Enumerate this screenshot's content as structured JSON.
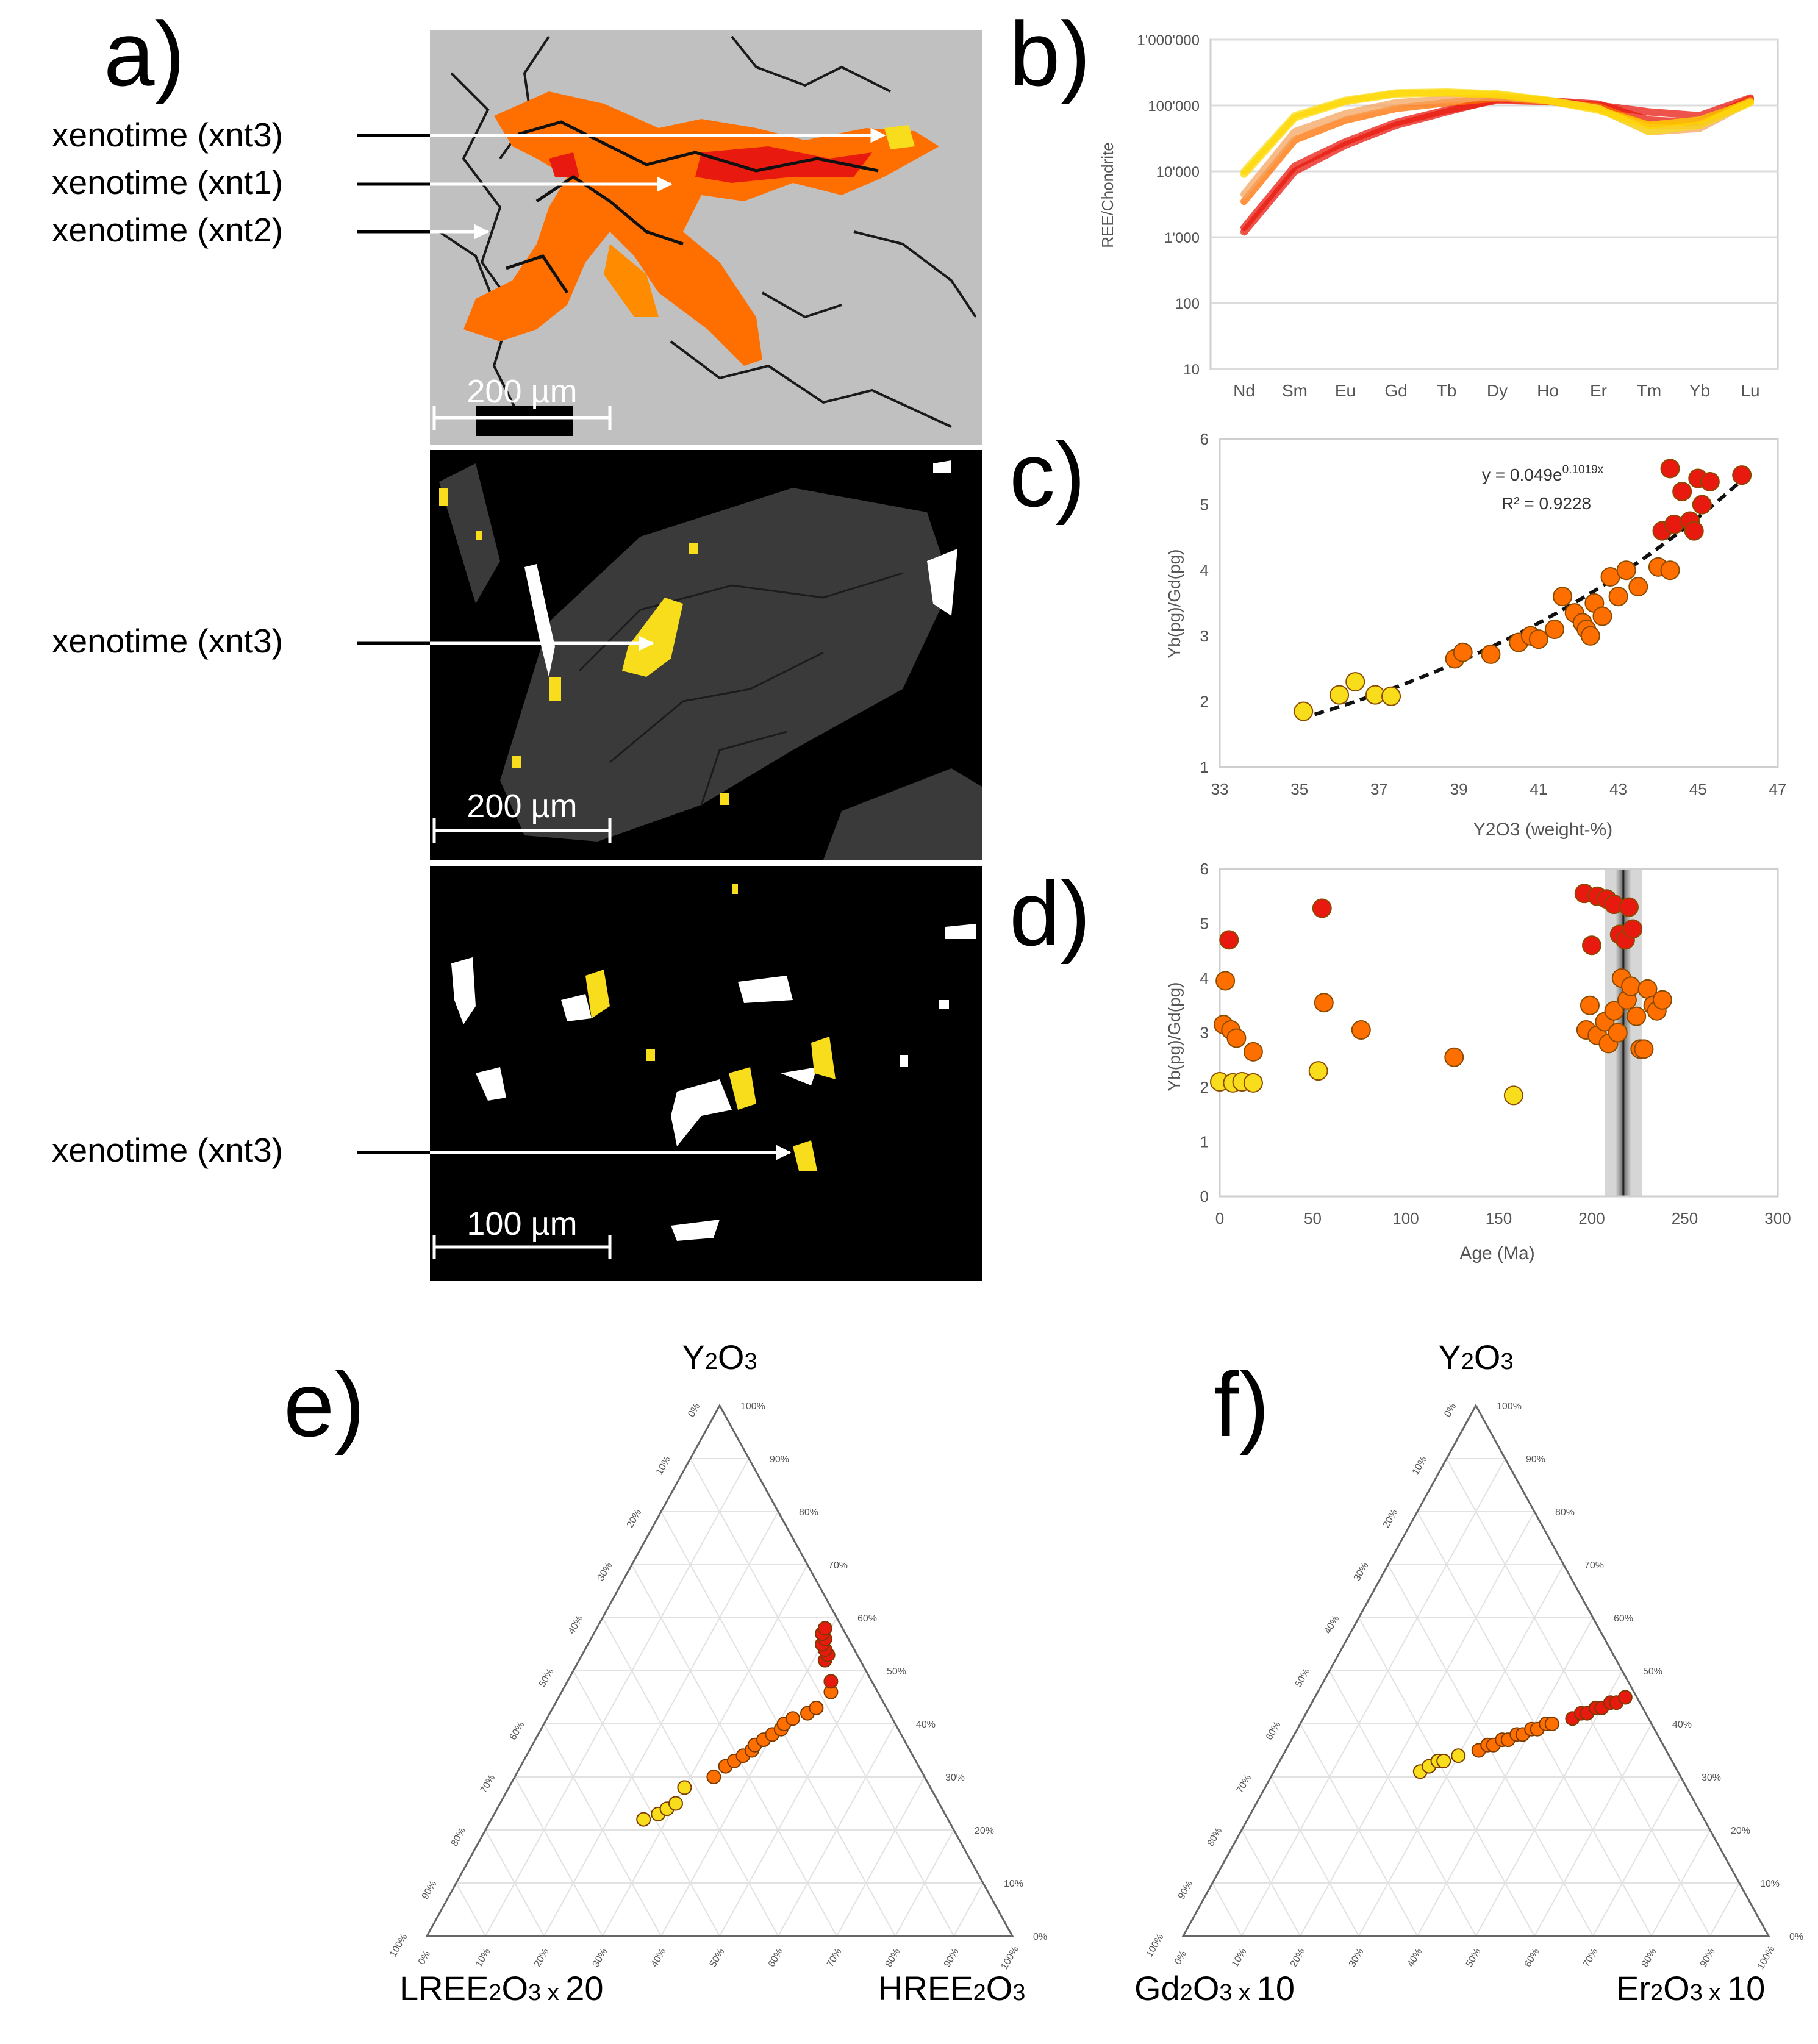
{
  "panel_labels": {
    "a": "a)",
    "b": "b)",
    "c": "c)",
    "d": "d)",
    "e": "e)",
    "f": "f)"
  },
  "colors": {
    "xnt1": "#e8190f",
    "xnt2": "#ff6f00",
    "xnt3": "#f7dd1b",
    "matrix": "#c0c0c0",
    "bse_bg": "#000000"
  },
  "images": [
    {
      "callouts": [
        "xenotime (xnt3)",
        "xenotime (xnt1)",
        "xenotime (xnt2)"
      ],
      "scale_bar": "200 µm"
    },
    {
      "callouts": [
        "xenotime (xnt3)"
      ],
      "scale_bar": "200 µm"
    },
    {
      "callouts": [
        "xenotime (xnt3)"
      ],
      "scale_bar": "100 µm"
    }
  ],
  "chart_data": [
    {
      "id": "b",
      "type": "line",
      "ylabel": "REE/Chondrite",
      "yscale": "log",
      "ylim": [
        10,
        1000000
      ],
      "yticks": [
        "10",
        "100",
        "1'000",
        "10'000",
        "100'000",
        "1'000'000"
      ],
      "categories": [
        "Nd",
        "Sm",
        "Eu",
        "Gd",
        "Tb",
        "Dy",
        "Ho",
        "Er",
        "Tm",
        "Yb",
        "Lu"
      ],
      "grid": true,
      "series": [
        {
          "group": "xnt1",
          "color": "#e8190f",
          "values": [
            1400,
            12000,
            28000,
            55000,
            85000,
            120000,
            115000,
            100000,
            80000,
            70000,
            130000
          ]
        },
        {
          "group": "xnt1",
          "color": "#e8190f",
          "values": [
            1200,
            10000,
            25000,
            50000,
            80000,
            125000,
            118000,
            105000,
            60000,
            55000,
            125000
          ]
        },
        {
          "group": "xnt2",
          "color": "#ff6f00",
          "values": [
            3500,
            30000,
            60000,
            90000,
            110000,
            130000,
            115000,
            95000,
            50000,
            50000,
            120000
          ]
        },
        {
          "group": "xnt2",
          "color": "#f4a460",
          "values": [
            4500,
            40000,
            75000,
            110000,
            125000,
            135000,
            118000,
            90000,
            40000,
            45000,
            115000
          ]
        },
        {
          "group": "xnt3",
          "color": "#f7dd1b",
          "values": [
            10000,
            70000,
            120000,
            155000,
            160000,
            150000,
            120000,
            90000,
            40000,
            50000,
            110000
          ]
        },
        {
          "group": "xnt3",
          "color": "#ffd700",
          "values": [
            9000,
            65000,
            115000,
            150000,
            155000,
            145000,
            118000,
            85000,
            50000,
            60000,
            112000
          ]
        }
      ]
    },
    {
      "id": "c",
      "type": "scatter",
      "xlabel": "Y2O3 (weight-%)",
      "ylabel": "Yb(pg)/Gd(pg)",
      "xlim": [
        33,
        47
      ],
      "ylim": [
        1,
        6
      ],
      "xticks": [
        33,
        35,
        37,
        39,
        41,
        43,
        45,
        47
      ],
      "yticks": [
        1,
        2,
        3,
        4,
        5,
        6
      ],
      "equation": "y = 0.049e",
      "equation_exp": "0.1019x",
      "r2": "R² = 0.9228",
      "fit": {
        "a": 0.049,
        "b": 0.1019,
        "x_range": [
          35,
          46.1
        ]
      },
      "points": [
        {
          "x": 35.1,
          "y": 1.85,
          "g": "xnt3"
        },
        {
          "x": 36.0,
          "y": 2.1,
          "g": "xnt3"
        },
        {
          "x": 36.4,
          "y": 2.3,
          "g": "xnt3"
        },
        {
          "x": 36.9,
          "y": 2.1,
          "g": "xnt3"
        },
        {
          "x": 37.3,
          "y": 2.08,
          "g": "xnt3"
        },
        {
          "x": 38.9,
          "y": 2.65,
          "g": "xnt2"
        },
        {
          "x": 39.1,
          "y": 2.75,
          "g": "xnt2"
        },
        {
          "x": 39.8,
          "y": 2.72,
          "g": "xnt2"
        },
        {
          "x": 40.5,
          "y": 2.9,
          "g": "xnt2"
        },
        {
          "x": 40.8,
          "y": 3.0,
          "g": "xnt2"
        },
        {
          "x": 41.0,
          "y": 2.95,
          "g": "xnt2"
        },
        {
          "x": 41.4,
          "y": 3.1,
          "g": "xnt2"
        },
        {
          "x": 41.6,
          "y": 3.6,
          "g": "xnt2"
        },
        {
          "x": 41.9,
          "y": 3.35,
          "g": "xnt2"
        },
        {
          "x": 42.1,
          "y": 3.2,
          "g": "xnt2"
        },
        {
          "x": 42.2,
          "y": 3.1,
          "g": "xnt2"
        },
        {
          "x": 42.3,
          "y": 3.0,
          "g": "xnt2"
        },
        {
          "x": 42.4,
          "y": 3.5,
          "g": "xnt2"
        },
        {
          "x": 42.6,
          "y": 3.3,
          "g": "xnt2"
        },
        {
          "x": 42.8,
          "y": 3.9,
          "g": "xnt2"
        },
        {
          "x": 43.0,
          "y": 3.6,
          "g": "xnt2"
        },
        {
          "x": 43.2,
          "y": 4.0,
          "g": "xnt2"
        },
        {
          "x": 43.5,
          "y": 3.75,
          "g": "xnt2"
        },
        {
          "x": 44.0,
          "y": 4.05,
          "g": "xnt2"
        },
        {
          "x": 44.3,
          "y": 4.0,
          "g": "xnt2"
        },
        {
          "x": 44.1,
          "y": 4.6,
          "g": "xnt1"
        },
        {
          "x": 44.4,
          "y": 4.7,
          "g": "xnt1"
        },
        {
          "x": 44.3,
          "y": 5.55,
          "g": "xnt1"
        },
        {
          "x": 44.6,
          "y": 5.2,
          "g": "xnt1"
        },
        {
          "x": 44.8,
          "y": 4.75,
          "g": "xnt1"
        },
        {
          "x": 44.9,
          "y": 4.6,
          "g": "xnt1"
        },
        {
          "x": 45.0,
          "y": 5.4,
          "g": "xnt1"
        },
        {
          "x": 45.1,
          "y": 5.0,
          "g": "xnt1"
        },
        {
          "x": 45.3,
          "y": 5.35,
          "g": "xnt1"
        },
        {
          "x": 46.1,
          "y": 5.45,
          "g": "xnt1"
        }
      ]
    },
    {
      "id": "d",
      "type": "scatter",
      "xlabel": "Age (Ma)",
      "ylabel": "Yb(pg)/Gd(pg)",
      "xlim": [
        0,
        300
      ],
      "ylim": [
        0,
        6
      ],
      "xticks": [
        0,
        50,
        100,
        150,
        200,
        250,
        300
      ],
      "yticks": [
        0,
        1,
        2,
        3,
        4,
        5,
        6
      ],
      "age_band": {
        "center": 217,
        "outer": [
          207,
          227
        ],
        "inner": [
          213,
          221
        ]
      },
      "points": [
        {
          "x": 5,
          "y": 4.7,
          "g": "xnt1"
        },
        {
          "x": 55,
          "y": 5.28,
          "g": "xnt1"
        },
        {
          "x": 196,
          "y": 5.55,
          "g": "xnt1"
        },
        {
          "x": 200,
          "y": 4.6,
          "g": "xnt1"
        },
        {
          "x": 203,
          "y": 5.5,
          "g": "xnt1"
        },
        {
          "x": 208,
          "y": 5.45,
          "g": "xnt1"
        },
        {
          "x": 212,
          "y": 5.35,
          "g": "xnt1"
        },
        {
          "x": 215,
          "y": 4.8,
          "g": "xnt1"
        },
        {
          "x": 218,
          "y": 4.7,
          "g": "xnt1"
        },
        {
          "x": 220,
          "y": 5.3,
          "g": "xnt1"
        },
        {
          "x": 222,
          "y": 4.9,
          "g": "xnt1"
        },
        {
          "x": 3,
          "y": 3.95,
          "g": "xnt2"
        },
        {
          "x": 2,
          "y": 3.15,
          "g": "xnt2"
        },
        {
          "x": 6,
          "y": 3.05,
          "g": "xnt2"
        },
        {
          "x": 9,
          "y": 2.9,
          "g": "xnt2"
        },
        {
          "x": 18,
          "y": 2.65,
          "g": "xnt2"
        },
        {
          "x": 56,
          "y": 3.55,
          "g": "xnt2"
        },
        {
          "x": 76,
          "y": 3.05,
          "g": "xnt2"
        },
        {
          "x": 126,
          "y": 2.55,
          "g": "xnt2"
        },
        {
          "x": 197,
          "y": 3.05,
          "g": "xnt2"
        },
        {
          "x": 199,
          "y": 3.5,
          "g": "xnt2"
        },
        {
          "x": 203,
          "y": 2.95,
          "g": "xnt2"
        },
        {
          "x": 207,
          "y": 3.2,
          "g": "xnt2"
        },
        {
          "x": 209,
          "y": 2.8,
          "g": "xnt2"
        },
        {
          "x": 212,
          "y": 3.4,
          "g": "xnt2"
        },
        {
          "x": 214,
          "y": 3.0,
          "g": "xnt2"
        },
        {
          "x": 216,
          "y": 4.0,
          "g": "xnt2"
        },
        {
          "x": 219,
          "y": 3.6,
          "g": "xnt2"
        },
        {
          "x": 221,
          "y": 3.85,
          "g": "xnt2"
        },
        {
          "x": 224,
          "y": 3.3,
          "g": "xnt2"
        },
        {
          "x": 226,
          "y": 2.7,
          "g": "xnt2"
        },
        {
          "x": 228,
          "y": 2.7,
          "g": "xnt2"
        },
        {
          "x": 230,
          "y": 3.8,
          "g": "xnt2"
        },
        {
          "x": 233,
          "y": 3.5,
          "g": "xnt2"
        },
        {
          "x": 235,
          "y": 3.4,
          "g": "xnt2"
        },
        {
          "x": 238,
          "y": 3.6,
          "g": "xnt2"
        },
        {
          "x": 0,
          "y": 2.1,
          "g": "xnt3"
        },
        {
          "x": 7,
          "y": 2.08,
          "g": "xnt3"
        },
        {
          "x": 12,
          "y": 2.1,
          "g": "xnt3"
        },
        {
          "x": 18,
          "y": 2.08,
          "g": "xnt3"
        },
        {
          "x": 53,
          "y": 2.3,
          "g": "xnt3"
        },
        {
          "x": 158,
          "y": 1.85,
          "g": "xnt3"
        }
      ]
    },
    {
      "id": "e",
      "type": "scatter",
      "subtype": "ternary",
      "apex": "Y2O3",
      "left": "LREE2O3 x 20",
      "right": "HREE2O3",
      "ticks": [
        "0%",
        "10%",
        "20%",
        "30%",
        "40%",
        "50%",
        "60%",
        "70%",
        "80%",
        "90%",
        "100%"
      ],
      "points": [
        {
          "top": 0.22,
          "right": 0.26,
          "g": "xnt3"
        },
        {
          "top": 0.23,
          "right": 0.28,
          "g": "xnt3"
        },
        {
          "top": 0.24,
          "right": 0.29,
          "g": "xnt3"
        },
        {
          "top": 0.25,
          "right": 0.3,
          "g": "xnt3"
        },
        {
          "top": 0.28,
          "right": 0.3,
          "g": "xnt3"
        },
        {
          "top": 0.3,
          "right": 0.34,
          "g": "xnt2"
        },
        {
          "top": 0.32,
          "right": 0.35,
          "g": "xnt2"
        },
        {
          "top": 0.33,
          "right": 0.36,
          "g": "xnt2"
        },
        {
          "top": 0.34,
          "right": 0.37,
          "g": "xnt2"
        },
        {
          "top": 0.35,
          "right": 0.38,
          "g": "xnt2"
        },
        {
          "top": 0.36,
          "right": 0.38,
          "g": "xnt2"
        },
        {
          "top": 0.37,
          "right": 0.39,
          "g": "xnt2"
        },
        {
          "top": 0.38,
          "right": 0.4,
          "g": "xnt2"
        },
        {
          "top": 0.39,
          "right": 0.41,
          "g": "xnt2"
        },
        {
          "top": 0.4,
          "right": 0.41,
          "g": "xnt2"
        },
        {
          "top": 0.41,
          "right": 0.42,
          "g": "xnt2"
        },
        {
          "top": 0.42,
          "right": 0.44,
          "g": "xnt2"
        },
        {
          "top": 0.43,
          "right": 0.45,
          "g": "xnt2"
        },
        {
          "top": 0.46,
          "right": 0.46,
          "g": "xnt2"
        },
        {
          "top": 0.48,
          "right": 0.45,
          "g": "xnt1"
        },
        {
          "top": 0.52,
          "right": 0.42,
          "g": "xnt1"
        },
        {
          "top": 0.53,
          "right": 0.42,
          "g": "xnt1"
        },
        {
          "top": 0.54,
          "right": 0.41,
          "g": "xnt1"
        },
        {
          "top": 0.55,
          "right": 0.4,
          "g": "xnt1"
        },
        {
          "top": 0.56,
          "right": 0.4,
          "g": "xnt1"
        },
        {
          "top": 0.57,
          "right": 0.39,
          "g": "xnt1"
        },
        {
          "top": 0.58,
          "right": 0.39,
          "g": "xnt1"
        }
      ]
    },
    {
      "id": "f",
      "type": "scatter",
      "subtype": "ternary",
      "apex": "Y2O3",
      "left": "Gd2O3 x 10",
      "right": "Er2O3 x 10",
      "ticks": [
        "0%",
        "10%",
        "20%",
        "30%",
        "40%",
        "50%",
        "60%",
        "70%",
        "80%",
        "90%",
        "100%"
      ],
      "points": [
        {
          "top": 0.31,
          "right": 0.25,
          "g": "xnt3"
        },
        {
          "top": 0.32,
          "right": 0.26,
          "g": "xnt3"
        },
        {
          "top": 0.33,
          "right": 0.27,
          "g": "xnt3"
        },
        {
          "top": 0.33,
          "right": 0.28,
          "g": "xnt3"
        },
        {
          "top": 0.34,
          "right": 0.3,
          "g": "xnt3"
        },
        {
          "top": 0.35,
          "right": 0.33,
          "g": "xnt2"
        },
        {
          "top": 0.36,
          "right": 0.34,
          "g": "xnt2"
        },
        {
          "top": 0.36,
          "right": 0.35,
          "g": "xnt2"
        },
        {
          "top": 0.37,
          "right": 0.36,
          "g": "xnt2"
        },
        {
          "top": 0.37,
          "right": 0.37,
          "g": "xnt2"
        },
        {
          "top": 0.38,
          "right": 0.38,
          "g": "xnt2"
        },
        {
          "top": 0.38,
          "right": 0.39,
          "g": "xnt2"
        },
        {
          "top": 0.39,
          "right": 0.4,
          "g": "xnt2"
        },
        {
          "top": 0.39,
          "right": 0.41,
          "g": "xnt2"
        },
        {
          "top": 0.4,
          "right": 0.42,
          "g": "xnt2"
        },
        {
          "top": 0.4,
          "right": 0.43,
          "g": "xnt2"
        },
        {
          "top": 0.41,
          "right": 0.46,
          "g": "xnt1"
        },
        {
          "top": 0.42,
          "right": 0.47,
          "g": "xnt1"
        },
        {
          "top": 0.42,
          "right": 0.48,
          "g": "xnt1"
        },
        {
          "top": 0.43,
          "right": 0.49,
          "g": "xnt1"
        },
        {
          "top": 0.43,
          "right": 0.5,
          "g": "xnt1"
        },
        {
          "top": 0.44,
          "right": 0.51,
          "g": "xnt1"
        },
        {
          "top": 0.44,
          "right": 0.52,
          "g": "xnt1"
        },
        {
          "top": 0.45,
          "right": 0.53,
          "g": "xnt1"
        }
      ]
    }
  ]
}
